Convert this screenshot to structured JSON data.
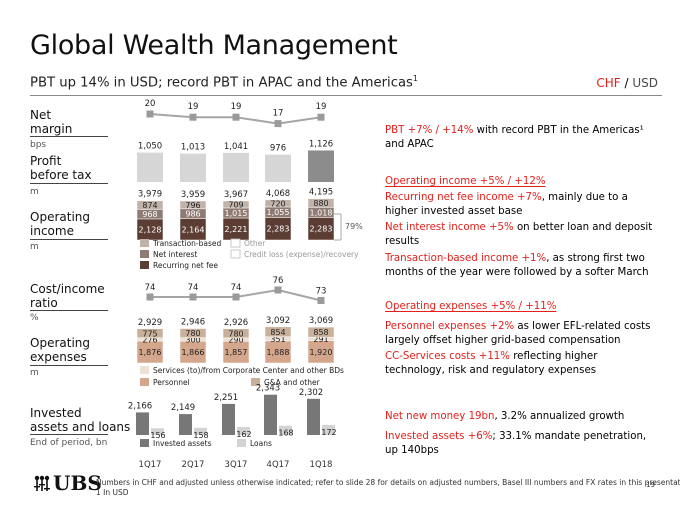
{
  "header": {
    "title": "Global Wealth Management",
    "subtitle": "PBT up 14% in USD; record PBT in APAC and the Americas",
    "subtitle_sup": "1",
    "currency_chf": "CHF",
    "currency_sep": " / ",
    "currency_usd": "USD"
  },
  "row_labels": {
    "net_margin": [
      "Net",
      "margin"
    ],
    "net_margin_unit": "bps",
    "pbt": [
      "Profit",
      "before tax"
    ],
    "pbt_unit": "m",
    "op_income": [
      "Operating",
      "income"
    ],
    "op_income_unit": "m",
    "cost_income": [
      "Cost/income",
      "ratio"
    ],
    "cost_income_unit": "%",
    "op_expenses": [
      "Operating",
      "expenses"
    ],
    "op_expenses_unit": "m",
    "invested": [
      "Invested",
      "assets and loans"
    ],
    "invested_unit": "End of period, bn"
  },
  "chart_data": {
    "type": "composite",
    "categories": [
      "1Q17",
      "2Q17",
      "3Q17",
      "4Q17",
      "1Q18"
    ],
    "net_margin": {
      "type": "line",
      "values": [
        20,
        19,
        19,
        17,
        19
      ]
    },
    "profit_before_tax": {
      "type": "bar",
      "values": [
        1050,
        1013,
        1041,
        976,
        1126
      ],
      "labels": [
        "1,050",
        "1,013",
        "1,041",
        "976",
        "1,126"
      ]
    },
    "operating_income": {
      "type": "stacked-bar",
      "totals": [
        "3,979",
        "3,959",
        "3,967",
        "4,068",
        "4,195"
      ],
      "series": [
        {
          "name": "Transaction-based",
          "values": [
            874,
            796,
            709,
            720,
            880
          ]
        },
        {
          "name": "Net interest",
          "values": [
            968,
            986,
            1015,
            1055,
            1018
          ],
          "labels": [
            "968",
            "986",
            "1,015",
            "1,055",
            "1,018"
          ]
        },
        {
          "name": "Recurring net fee",
          "values": [
            2128,
            2164,
            2221,
            2283,
            2283
          ],
          "labels": [
            "2,128",
            "2,164",
            "2,221",
            "2,283",
            "2,283"
          ]
        }
      ],
      "other_legend": [
        "Other",
        "Credit loss (expense)/recovery"
      ],
      "annotation": "79%"
    },
    "cost_income_ratio": {
      "type": "line",
      "values": [
        74,
        74,
        74,
        76,
        73
      ]
    },
    "operating_expenses": {
      "type": "stacked-bar",
      "totals": [
        "2,929",
        "2,946",
        "2,926",
        "3,092",
        "3,069"
      ],
      "series": [
        {
          "name": "G&A and other",
          "values": [
            775,
            780,
            780,
            854,
            858
          ]
        },
        {
          "name": "Services (to)/from Corporate Center and other BDs",
          "values": [
            276,
            300,
            290,
            351,
            291
          ]
        },
        {
          "name": "Personnel",
          "values": [
            1876,
            1866,
            1857,
            1888,
            1920
          ],
          "labels": [
            "1,876",
            "1,866",
            "1,857",
            "1,888",
            "1,920"
          ]
        }
      ]
    },
    "invested_assets_and_loans": {
      "type": "bar",
      "series": [
        {
          "name": "Invested assets",
          "values": [
            2166,
            2149,
            2251,
            2343,
            2302
          ],
          "labels": [
            "2,166",
            "2,149",
            "2,251",
            "2,343",
            "2,302"
          ]
        },
        {
          "name": "Loans",
          "values": [
            156,
            158,
            162,
            168,
            172
          ]
        }
      ]
    },
    "colors": {
      "grey_bar": "#d6d6d6",
      "dark_bar": "#8c8c8c",
      "recurring": "#5b3d33",
      "net_interest": "#8e7b73",
      "transaction": "#c1b3a9",
      "personnel": "#d4a78d",
      "services": "#ede1d5",
      "ga_other": "#c9b09b",
      "invested": "#777777",
      "loans": "#d3d3d3",
      "line": "#a6a6a6",
      "accent_red": "#e2211c"
    }
  },
  "bullets": [
    {
      "red": "PBT +7% / +14%",
      "black": " with record PBT in the Americas¹ and APAC"
    },
    {
      "header": "Operating income +5% / +12%"
    },
    {
      "red": "Recurring net fee income +7%",
      "black": ", mainly due to a higher invested asset base"
    },
    {
      "red": "Net interest income +5%",
      "black": " on better loan and deposit results"
    },
    {
      "red": "Transaction-based income +1%",
      "black": ", as strong first two months of the year were followed by a softer March"
    },
    {
      "header": "Operating expenses +5% / +11%"
    },
    {
      "red": "Personnel expenses +2%",
      "black": " as lower EFL-related costs largely offset higher grid-based compensation"
    },
    {
      "red": "CC-Services costs +11%",
      "black": " reflecting higher technology, risk and regulatory expenses"
    },
    {
      "red": "Net new money 19bn",
      "black": ", 3.2% annualized growth"
    },
    {
      "red": "Invested assets +6%",
      "black": "; 33.1% mandate penetration, up 140bps"
    }
  ],
  "footer": {
    "logo": "UBS",
    "note_line1": "Numbers in CHF and adjusted unless otherwise indicated; refer to slide 28 for details on adjusted numbers, Basel III numbers and FX rates in this presentation",
    "note_line2": "1 In USD",
    "page": "19"
  }
}
